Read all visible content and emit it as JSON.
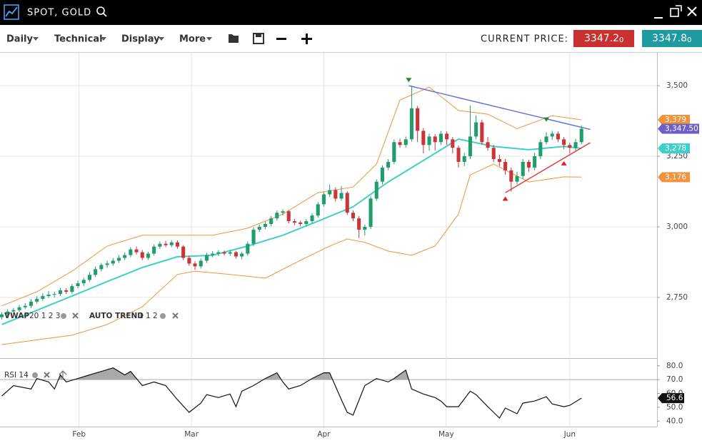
{
  "header": {
    "title": "SPOT, GOLD"
  },
  "toolbar": {
    "menus": [
      "Daily",
      "Technical",
      "Display",
      "More"
    ],
    "price_label": "CURRENT PRICE:",
    "bid": {
      "main": "3347.2",
      "sub": "0"
    },
    "ask": {
      "main": "3347.8",
      "sub": "0"
    }
  },
  "chart_data": [
    {
      "type": "candlestick",
      "indicators": [
        {
          "name": "VWAP",
          "params": "20 1 2 3"
        },
        {
          "name": "AUTO TREND",
          "params": "1 1 2"
        }
      ],
      "up_color": "#1f9d6b",
      "down_color": "#c8363a",
      "price_label": "3,347.50",
      "price_color": "#6c5fc7",
      "xlim": [
        -0.3,
        111.9
      ],
      "ylim": [
        2540,
        3614
      ],
      "xticks": [
        {
          "value": 13.2,
          "label": "Feb"
        },
        {
          "value": 32.4,
          "label": "Mar"
        },
        {
          "value": 55,
          "label": "Apr"
        },
        {
          "value": 75.9,
          "label": "May"
        },
        {
          "value": 97,
          "label": "Jun"
        }
      ],
      "yticks": [
        {
          "value": 3500,
          "label": "3,500"
        },
        {
          "value": 3250,
          "label": "3,250"
        },
        {
          "value": 3000,
          "label": "3,000"
        },
        {
          "value": 2750,
          "label": "2,750"
        }
      ],
      "grid": true,
      "ohlc": [
        [
          2680,
          2698,
          2672,
          2690
        ],
        [
          2690,
          2708,
          2684,
          2700
        ],
        [
          2700,
          2713,
          2692,
          2705
        ],
        [
          2705,
          2723,
          2698,
          2715
        ],
        [
          2715,
          2730,
          2708,
          2720
        ],
        [
          2720,
          2744,
          2712,
          2735
        ],
        [
          2735,
          2754,
          2728,
          2745
        ],
        [
          2745,
          2765,
          2738,
          2755
        ],
        [
          2755,
          2772,
          2748,
          2760
        ],
        [
          2760,
          2770,
          2750,
          2762
        ],
        [
          2762,
          2784,
          2755,
          2775
        ],
        [
          2775,
          2782,
          2762,
          2770
        ],
        [
          2770,
          2798,
          2764,
          2790
        ],
        [
          2790,
          2810,
          2782,
          2800
        ],
        [
          2800,
          2820,
          2790,
          2812
        ],
        [
          2812,
          2840,
          2805,
          2830
        ],
        [
          2830,
          2860,
          2822,
          2850
        ],
        [
          2850,
          2872,
          2842,
          2865
        ],
        [
          2865,
          2880,
          2855,
          2870
        ],
        [
          2870,
          2890,
          2862,
          2880
        ],
        [
          2880,
          2900,
          2872,
          2890
        ],
        [
          2890,
          2910,
          2882,
          2900
        ],
        [
          2900,
          2928,
          2892,
          2920
        ],
        [
          2920,
          2930,
          2902,
          2910
        ],
        [
          2910,
          2918,
          2882,
          2890
        ],
        [
          2890,
          2912,
          2882,
          2905
        ],
        [
          2905,
          2938,
          2898,
          2930
        ],
        [
          2930,
          2948,
          2922,
          2940
        ],
        [
          2940,
          2950,
          2928,
          2935
        ],
        [
          2935,
          2953,
          2928,
          2945
        ],
        [
          2945,
          2952,
          2922,
          2930
        ],
        [
          2930,
          2935,
          2882,
          2890
        ],
        [
          2890,
          2898,
          2862,
          2870
        ],
        [
          2870,
          2878,
          2848,
          2860
        ],
        [
          2860,
          2888,
          2852,
          2880
        ],
        [
          2880,
          2908,
          2872,
          2900
        ],
        [
          2900,
          2914,
          2892,
          2905
        ],
        [
          2905,
          2918,
          2896,
          2910
        ],
        [
          2910,
          2916,
          2898,
          2905
        ],
        [
          2905,
          2918,
          2897,
          2910
        ],
        [
          2910,
          2915,
          2887,
          2895
        ],
        [
          2895,
          2912,
          2885,
          2905
        ],
        [
          2905,
          2948,
          2898,
          2940
        ],
        [
          2940,
          2998,
          2932,
          2990
        ],
        [
          2990,
          3008,
          2982,
          3000
        ],
        [
          3000,
          3018,
          2992,
          3010
        ],
        [
          3010,
          3038,
          3002,
          3030
        ],
        [
          3030,
          3058,
          3022,
          3050
        ],
        [
          3050,
          3062,
          3040,
          3055
        ],
        [
          3055,
          3060,
          3012,
          3020
        ],
        [
          3020,
          3028,
          3006,
          3015
        ],
        [
          3015,
          3022,
          3002,
          3010
        ],
        [
          3010,
          3028,
          3002,
          3020
        ],
        [
          3020,
          3048,
          3012,
          3040
        ],
        [
          3040,
          3088,
          3032,
          3080
        ],
        [
          3080,
          3124,
          3072,
          3115
        ],
        [
          3115,
          3150,
          3106,
          3130
        ],
        [
          3130,
          3140,
          3090,
          3100
        ],
        [
          3100,
          3145,
          3092,
          3120
        ],
        [
          3120,
          3126,
          3042,
          3050
        ],
        [
          3050,
          3058,
          3020,
          3030
        ],
        [
          3030,
          3038,
          2960,
          2990
        ],
        [
          2990,
          3008,
          2970,
          3000
        ],
        [
          3000,
          3108,
          2992,
          3100
        ],
        [
          3100,
          3168,
          3092,
          3160
        ],
        [
          3160,
          3218,
          3150,
          3210
        ],
        [
          3210,
          3240,
          3200,
          3230
        ],
        [
          3230,
          3310,
          3222,
          3300
        ],
        [
          3300,
          3312,
          3280,
          3290
        ],
        [
          3290,
          3320,
          3280,
          3310
        ],
        [
          3310,
          3500,
          3302,
          3420
        ],
        [
          3420,
          3428,
          3300,
          3340
        ],
        [
          3340,
          3350,
          3260,
          3290
        ],
        [
          3290,
          3330,
          3270,
          3320
        ],
        [
          3320,
          3328,
          3270,
          3300
        ],
        [
          3300,
          3340,
          3290,
          3330
        ],
        [
          3330,
          3338,
          3290,
          3310
        ],
        [
          3310,
          3318,
          3260,
          3280
        ],
        [
          3280,
          3288,
          3210,
          3230
        ],
        [
          3230,
          3262,
          3215,
          3250
        ],
        [
          3250,
          3430,
          3240,
          3320
        ],
        [
          3320,
          3395,
          3310,
          3370
        ],
        [
          3370,
          3380,
          3290,
          3300
        ],
        [
          3300,
          3318,
          3270,
          3280
        ],
        [
          3280,
          3290,
          3230,
          3240
        ],
        [
          3240,
          3255,
          3215,
          3230
        ],
        [
          3230,
          3240,
          3185,
          3200
        ],
        [
          3200,
          3210,
          3125,
          3160
        ],
        [
          3160,
          3195,
          3150,
          3180
        ],
        [
          3180,
          3240,
          3170,
          3230
        ],
        [
          3230,
          3238,
          3195,
          3210
        ],
        [
          3210,
          3262,
          3200,
          3250
        ],
        [
          3250,
          3310,
          3240,
          3300
        ],
        [
          3300,
          3335,
          3292,
          3320
        ],
        [
          3320,
          3340,
          3308,
          3330
        ],
        [
          3330,
          3338,
          3300,
          3310
        ],
        [
          3310,
          3318,
          3275,
          3290
        ],
        [
          3290,
          3298,
          3260,
          3280
        ],
        [
          3280,
          3312,
          3270,
          3300
        ],
        [
          3300,
          3360,
          3292,
          3347.5
        ]
      ],
      "overlays": [
        {
          "color": "#3fcfca",
          "width": 2,
          "x": [
            0,
            12,
            18,
            24,
            30,
            36,
            42,
            48,
            54,
            60,
            66,
            72,
            78,
            84,
            90,
            96,
            99
          ],
          "values": [
            2654,
            2755,
            2806,
            2856,
            2894,
            2899,
            2932,
            2970,
            3020,
            3071,
            3159,
            3235,
            3311,
            3285,
            3273,
            3285,
            3278
          ],
          "value_label": "3,278"
        },
        {
          "color": "#f2923a",
          "width": 1,
          "x": [
            0,
            6,
            12,
            18,
            24,
            30,
            36,
            42,
            48,
            54,
            60,
            64,
            68,
            73,
            78,
            83,
            88,
            94,
            99
          ],
          "values": [
            2720,
            2770,
            2843,
            2932,
            2970,
            2970,
            2970,
            2995,
            3045,
            3121,
            3141,
            3222,
            3449,
            3495,
            3412,
            3399,
            3348,
            3394,
            3379
          ],
          "value_label": "3,379"
        },
        {
          "color": "#f2923a",
          "width": 1,
          "x": [
            0,
            12,
            18,
            24,
            30,
            33,
            39,
            45,
            51,
            56,
            59,
            62,
            66,
            70,
            74,
            78,
            80,
            84,
            90,
            96,
            99
          ],
          "values": [
            2583,
            2616,
            2654,
            2717,
            2831,
            2843,
            2831,
            2818,
            2881,
            2932,
            2957,
            2945,
            2914,
            2899,
            2932,
            3045,
            3184,
            3222,
            3159,
            3177,
            3176
          ],
          "value_label": "3,176"
        }
      ],
      "trend_lines": [
        {
          "color": "#5b6fd6",
          "x": [
            69.5,
            100.5
          ],
          "values": [
            3500,
            3345
          ]
        },
        {
          "color": "#e53535",
          "x": [
            86,
            100.5
          ],
          "values": [
            3121,
            3298
          ]
        }
      ],
      "signals": [
        {
          "direction": "down",
          "color": "#1e8a2e",
          "x": 69.5,
          "value": 3520
        },
        {
          "direction": "down",
          "color": "#1e8a2e",
          "x": 93,
          "value": 3380
        },
        {
          "direction": "up",
          "color": "#e02020",
          "x": 86,
          "value": 3100
        },
        {
          "direction": "up",
          "color": "#e02020",
          "x": 96,
          "value": 3225
        }
      ]
    },
    {
      "type": "line",
      "title": "RSI 14",
      "color": "#111111",
      "fill_color": "#a9a9a9",
      "xlim": [
        -0.3,
        111.9
      ],
      "ylim": [
        36,
        84
      ],
      "overbought": 70,
      "yticks": [
        {
          "value": 80,
          "label": "80.0"
        },
        {
          "value": 70,
          "label": "70.0"
        },
        {
          "value": 60,
          "label": "60.0"
        },
        {
          "value": 50,
          "label": "50.0"
        },
        {
          "value": 40,
          "label": "40.0"
        }
      ],
      "x": [
        0,
        2,
        5,
        6,
        8,
        9,
        10,
        11,
        13,
        15,
        17,
        19,
        21,
        22,
        24,
        26,
        28,
        30,
        32,
        34,
        35,
        37,
        39,
        40,
        41,
        43,
        45,
        47,
        48,
        49,
        51,
        53,
        55,
        56,
        58,
        59,
        60,
        62,
        64,
        66,
        67,
        69,
        70,
        72,
        74,
        75,
        76,
        78,
        80,
        81,
        83,
        84,
        85,
        86,
        88,
        89,
        91,
        93,
        94,
        96,
        97,
        99
      ],
      "values": [
        58.1,
        65.7,
        63.2,
        70.8,
        68.3,
        63.2,
        73.4,
        68.3,
        70.8,
        73.4,
        75.9,
        78.5,
        73.4,
        75.9,
        65.7,
        68.3,
        65.7,
        55.5,
        46.3,
        53.0,
        59.1,
        57.0,
        59.6,
        50.4,
        61.6,
        65.7,
        70.8,
        74.9,
        68.3,
        63.2,
        65.7,
        70.8,
        74.9,
        74.9,
        55.5,
        46.3,
        44.3,
        65.7,
        70.8,
        68.3,
        70.8,
        76.9,
        63.2,
        59.6,
        57.0,
        54.5,
        50.4,
        50.4,
        61.6,
        59.1,
        50.4,
        46.3,
        42.2,
        49.4,
        45.3,
        53.0,
        54.5,
        57.6,
        52.4,
        50.4,
        51.4,
        56.6
      ]
    }
  ]
}
